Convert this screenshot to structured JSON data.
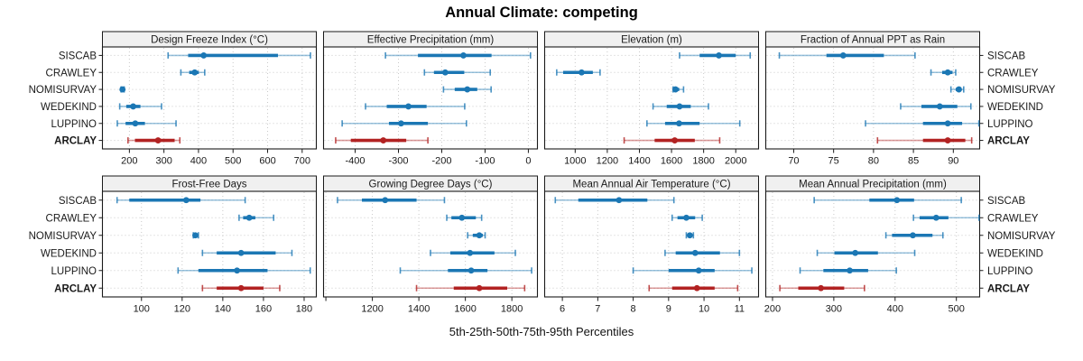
{
  "title": "Annual Climate: competing",
  "caption": "5th-25th-50th-75th-95th Percentiles",
  "colors": {
    "blue": "#1b77b4",
    "blue_light": "rgba(27,119,180,0.45)",
    "blue_cap": "rgba(27,119,180,0.8)",
    "red": "#b22222",
    "red_light": "rgba(178,34,34,0.45)",
    "red_cap": "rgba(178,34,34,0.8)",
    "header_bg": "#f0f0f0",
    "grid": "#c9c9c9",
    "border": "#1a1a1a",
    "text": "#1a1a1a"
  },
  "chart_data": {
    "type": "dotplot",
    "title": "Annual Climate: competing",
    "caption": "5th-25th-50th-75th-95th Percentiles",
    "percentiles": [
      "5th",
      "25th",
      "50th",
      "75th",
      "95th"
    ],
    "sites": [
      "SISCAB",
      "CRAWLEY",
      "NOMISURVAY",
      "WEDEKIND",
      "LUPPINO",
      "ARCLAY"
    ],
    "highlight_site": "ARCLAY",
    "legend_position": "none",
    "grid": "dotted",
    "panels": [
      {
        "title": "Design Freeze Index (°C)",
        "axis_min": 122,
        "axis_max": 741,
        "ticks": [
          200,
          300,
          400,
          500,
          600,
          700
        ],
        "tick_labels": [
          "200",
          "300",
          "400",
          "500",
          "600",
          "700"
        ],
        "values": {
          "SISCAB": [
            312,
            370,
            415,
            630,
            724
          ],
          "CRAWLEY": [
            349,
            373,
            389,
            401,
            418
          ],
          "NOMISURVAY": [
            176,
            178,
            180,
            182,
            185
          ],
          "WEDEKIND": [
            172,
            191,
            211,
            232,
            293
          ],
          "LUPPINO": [
            165,
            189,
            217,
            245,
            335
          ],
          "ARCLAY": [
            196,
            216,
            283,
            331,
            346
          ]
        }
      },
      {
        "title": "Effective Precipitation (mm)",
        "axis_min": -473,
        "axis_max": 21,
        "ticks": [
          -400,
          -300,
          -200,
          -100,
          0
        ],
        "tick_labels": [
          "-400",
          "-300",
          "-200",
          "-100",
          "0"
        ],
        "values": {
          "SISCAB": [
            -330,
            -255,
            -150,
            -85,
            5
          ],
          "CRAWLEY": [
            -240,
            -218,
            -192,
            -148,
            -88
          ],
          "NOMISURVAY": [
            -196,
            -170,
            -141,
            -118,
            -86
          ],
          "WEDEKIND": [
            -376,
            -327,
            -277,
            -235,
            -147
          ],
          "LUPPINO": [
            -430,
            -322,
            -294,
            -232,
            -143
          ],
          "ARCLAY": [
            -445,
            -410,
            -335,
            -282,
            -232
          ]
        }
      },
      {
        "title": "Elevation (m)",
        "axis_min": 810,
        "axis_max": 2142,
        "ticks": [
          1000,
          1200,
          1400,
          1600,
          1800,
          2000
        ],
        "tick_labels": [
          "1000",
          "1200",
          "1400",
          "1600",
          "1800",
          "2000"
        ],
        "values": {
          "SISCAB": [
            1650,
            1775,
            1895,
            2000,
            2090
          ],
          "CRAWLEY": [
            885,
            925,
            1040,
            1110,
            1155
          ],
          "NOMISURVAY": [
            1610,
            1618,
            1625,
            1648,
            1675
          ],
          "WEDEKIND": [
            1485,
            1570,
            1650,
            1720,
            1830
          ],
          "LUPPINO": [
            1447,
            1560,
            1647,
            1775,
            2025
          ],
          "ARCLAY": [
            1305,
            1495,
            1620,
            1745,
            1900
          ]
        }
      },
      {
        "title": "Fraction of Annual PPT as Rain",
        "axis_min": 66.5,
        "axis_max": 93.3,
        "ticks": [
          70,
          75,
          80,
          85,
          90
        ],
        "tick_labels": [
          "70",
          "75",
          "80",
          "85",
          "90"
        ],
        "values": {
          "SISCAB": [
            68.2,
            74.1,
            76.2,
            81.3,
            85.2
          ],
          "CRAWLEY": [
            87.2,
            88.6,
            89.3,
            89.9,
            90.3
          ],
          "NOMISURVAY": [
            89.7,
            90.3,
            90.7,
            91.0,
            91.3
          ],
          "WEDEKIND": [
            83.4,
            86.0,
            88.3,
            90.5,
            92.2
          ],
          "LUPPINO": [
            79.0,
            86.2,
            89.3,
            91.1,
            93.2
          ],
          "ARCLAY": [
            80.5,
            86.2,
            89.3,
            91.5,
            92.3
          ]
        }
      },
      {
        "title": "Frost-Free Days",
        "axis_min": 80.8,
        "axis_max": 186,
        "ticks": [
          100,
          120,
          140,
          160,
          180
        ],
        "tick_labels": [
          "100",
          "120",
          "140",
          "160",
          "180"
        ],
        "values": {
          "SISCAB": [
            88,
            94,
            122,
            129,
            151
          ],
          "CRAWLEY": [
            148,
            150,
            153,
            156,
            165
          ],
          "NOMISURVAY": [
            125.5,
            126,
            126.5,
            127.5,
            128
          ],
          "WEDEKIND": [
            130,
            137,
            149,
            166,
            174
          ],
          "LUPPINO": [
            118,
            128,
            147,
            162,
            183
          ],
          "ARCLAY": [
            130,
            137,
            149,
            160,
            168
          ]
        }
      },
      {
        "title": "Growing Degree Days (°C)",
        "axis_min": 990,
        "axis_max": 1910,
        "ticks": [
          1000,
          1200,
          1400,
          1600,
          1800
        ],
        "tick_labels": [
          "",
          "1200",
          "1400",
          "1600",
          "1800"
        ],
        "values": {
          "SISCAB": [
            1050,
            1155,
            1255,
            1390,
            1510
          ],
          "CRAWLEY": [
            1520,
            1540,
            1585,
            1645,
            1670
          ],
          "NOMISURVAY": [
            1610,
            1632,
            1660,
            1675,
            1685
          ],
          "WEDEKIND": [
            1450,
            1535,
            1620,
            1725,
            1815
          ],
          "LUPPINO": [
            1320,
            1525,
            1625,
            1695,
            1885
          ],
          "ARCLAY": [
            1390,
            1550,
            1660,
            1780,
            1855
          ]
        }
      },
      {
        "title": "Mean Annual Air Temperature (°C)",
        "axis_min": 5.5,
        "axis_max": 11.54,
        "ticks": [
          6,
          7,
          8,
          9,
          10,
          11
        ],
        "tick_labels": [
          "6",
          "7",
          "8",
          "9",
          "10",
          "11"
        ],
        "values": {
          "SISCAB": [
            5.8,
            6.45,
            7.6,
            8.4,
            9.15
          ],
          "CRAWLEY": [
            9.1,
            9.25,
            9.5,
            9.75,
            9.95
          ],
          "NOMISURVAY": [
            9.5,
            9.55,
            9.6,
            9.65,
            9.7
          ],
          "WEDEKIND": [
            8.9,
            9.2,
            9.75,
            10.45,
            11.0
          ],
          "LUPPINO": [
            8.0,
            9.0,
            9.85,
            10.3,
            11.35
          ],
          "ARCLAY": [
            8.45,
            9.1,
            9.8,
            10.3,
            10.95
          ]
        }
      },
      {
        "title": "Mean Annual Precipitation (mm)",
        "axis_min": 189,
        "axis_max": 538,
        "ticks": [
          200,
          300,
          400,
          500
        ],
        "tick_labels": [
          "200",
          "300",
          "400",
          "500"
        ],
        "values": {
          "SISCAB": [
            268,
            358,
            403,
            431,
            508
          ],
          "CRAWLEY": [
            430,
            440,
            467,
            487,
            537
          ],
          "NOMISURVAY": [
            385,
            395,
            429,
            461,
            478
          ],
          "WEDEKIND": [
            273,
            301,
            335,
            372,
            432
          ],
          "LUPPINO": [
            245,
            283,
            326,
            356,
            402
          ],
          "ARCLAY": [
            212,
            242,
            279,
            317,
            350
          ]
        }
      }
    ]
  }
}
